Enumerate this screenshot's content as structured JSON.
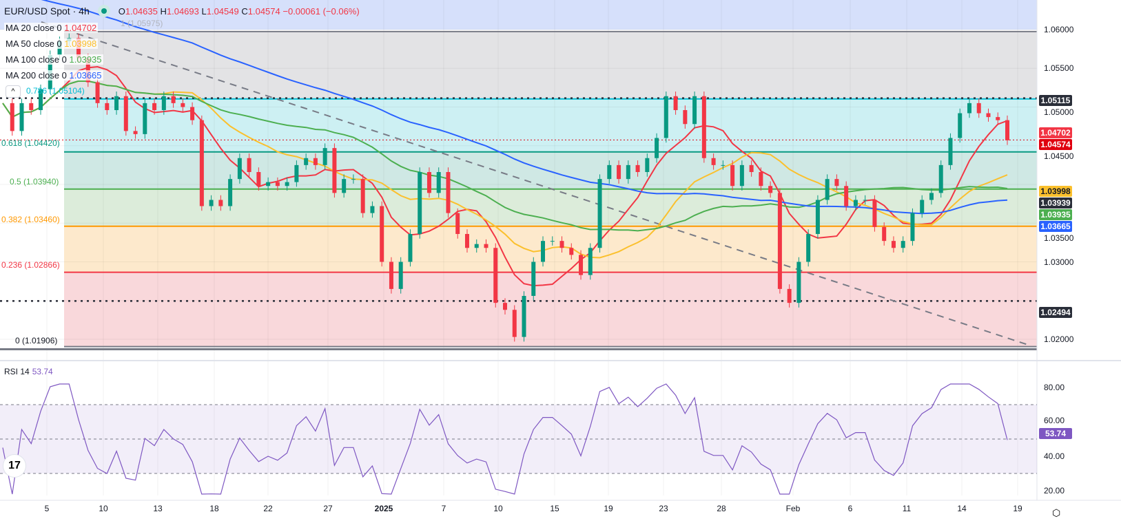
{
  "header": {
    "symbol": "EUR/USD Spot",
    "interval": "4h",
    "status_color": "#089981",
    "open_label": "O",
    "open": "1.04635",
    "high_label": "H",
    "high": "1.04693",
    "low_label": "L",
    "low": "1.04549",
    "close_label": "C",
    "close": "1.04574",
    "change": "−0.00061 (−0.06%)"
  },
  "moving_averages": [
    {
      "label": "MA 20 close 0",
      "value": "1.04702",
      "color": "#f23645"
    },
    {
      "label": "MA 50 close 0",
      "value": "1.03998",
      "color": "#fbc02d"
    },
    {
      "label": "MA 100 close 0",
      "value": "1.03935",
      "color": "#4caf50"
    },
    {
      "label": "MA 200 close 0",
      "value": "1.03665",
      "color": "#2962ff"
    }
  ],
  "fib_levels": [
    {
      "label": "1 (1.05975)",
      "level": 1,
      "price": 1.05975,
      "color": "#787b86"
    },
    {
      "label": "0.786 (1.05104)",
      "level": 0.786,
      "price": 1.05104,
      "color": "#00bcd4"
    },
    {
      "label": "0.618 (1.04420)",
      "level": 0.618,
      "price": 1.0442,
      "color": "#089981"
    },
    {
      "label": "0.5 (1.03940)",
      "level": 0.5,
      "price": 1.0394,
      "color": "#4caf50"
    },
    {
      "label": "0.382 (1.03460)",
      "level": 0.382,
      "price": 1.0346,
      "color": "#ff9800"
    },
    {
      "label": "0.236 (1.02866)",
      "level": 0.236,
      "price": 1.02866,
      "color": "#f23645"
    },
    {
      "label": "0 (1.01906)",
      "level": 0,
      "price": 1.01906,
      "color": "#787b86"
    }
  ],
  "price_axis": {
    "ticks": [
      "1.06000",
      "1.05500",
      "1.05000",
      "1.04500",
      "1.03500",
      "1.03000",
      "1.02000"
    ],
    "tags": [
      {
        "value": "1.05115",
        "color": "#2a2e39"
      },
      {
        "value": "1.04702",
        "color": "#f23645"
      },
      {
        "value": "1.04574",
        "color": "#e0000f"
      },
      {
        "value": "1.03998",
        "color": "#fbc02d"
      },
      {
        "value": "1.03939",
        "color": "#2a2e39"
      },
      {
        "value": "1.03935",
        "color": "#4caf50"
      },
      {
        "value": "1.03665",
        "color": "#2962ff"
      },
      {
        "value": "1.02494",
        "color": "#2a2e39"
      }
    ]
  },
  "time_axis": {
    "ticks": [
      "5",
      "10",
      "13",
      "18",
      "22",
      "27",
      "2025",
      "7",
      "10",
      "15",
      "19",
      "23",
      "28",
      "Feb",
      "6",
      "11",
      "14",
      "19"
    ]
  },
  "rsi": {
    "label": "RSI 14",
    "value": "53.74",
    "ticks": [
      "80.00",
      "60.00",
      "40.00",
      "20.00"
    ],
    "color": "#7e57c2",
    "upper": 70,
    "lower": 30
  },
  "chart_data": {
    "type": "candlestick",
    "symbol": "EUR/USD",
    "timeframe": "4h",
    "ylim": [
      1.0175,
      1.064
    ],
    "up_color": "#089981",
    "down_color": "#f23645",
    "closes": [
      1.0505,
      1.0469,
      1.0505,
      1.0496,
      1.0523,
      1.0567,
      1.0585,
      1.0589,
      1.0563,
      1.0532,
      1.0505,
      1.0496,
      1.0514,
      1.0469,
      1.0465,
      1.0505,
      1.0496,
      1.0514,
      1.0505,
      1.05,
      1.0483,
      1.0372,
      1.038,
      1.0372,
      1.0407,
      1.0434,
      1.0416,
      1.0398,
      1.0403,
      1.0398,
      1.0403,
      1.0425,
      1.0434,
      1.0425,
      1.0447,
      1.0389,
      1.0407,
      1.0407,
      1.0363,
      1.0372,
      1.03,
      1.0265,
      1.03,
      1.0336,
      1.0416,
      1.0389,
      1.0416,
      1.0363,
      1.0336,
      1.0318,
      1.0323,
      1.0318,
      1.0247,
      1.0238,
      1.0203,
      1.0256,
      1.03,
      1.0327,
      1.0327,
      1.0318,
      1.0309,
      1.0283,
      1.0318,
      1.0407,
      1.0425,
      1.0407,
      1.0425,
      1.0416,
      1.0434,
      1.046,
      1.0514,
      1.0496,
      1.0478,
      1.0514,
      1.0434,
      1.0425,
      1.0425,
      1.0398,
      1.0425,
      1.0416,
      1.0398,
      1.0389,
      1.0265,
      1.0247,
      1.03,
      1.0336,
      1.038,
      1.0407,
      1.0398,
      1.0372,
      1.038,
      1.038,
      1.0345,
      1.0327,
      1.0318,
      1.0327,
      1.0363,
      1.038,
      1.0389,
      1.0425,
      1.046,
      1.0492,
      1.0505,
      1.0492,
      1.0487,
      1.0483,
      1.0457
    ],
    "resistance_lines": [
      1.05115,
      1.02494
    ],
    "last_price": 1.04574,
    "trendline": "descending dashed"
  }
}
